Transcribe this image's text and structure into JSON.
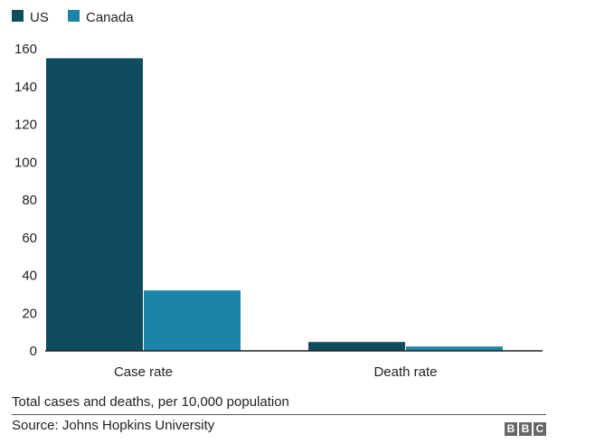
{
  "chart_data": {
    "type": "bar",
    "title": "",
    "subtitle": "Total cases and deaths, per 10,000 population",
    "source": "Source: Johns Hopkins University",
    "categories": [
      "Case rate",
      "Death rate"
    ],
    "series": [
      {
        "name": "US",
        "color": "#0e4c5e",
        "values": [
          155,
          4.7
        ]
      },
      {
        "name": "Canada",
        "color": "#1a85a6",
        "values": [
          32,
          2.3
        ]
      }
    ],
    "ylim": [
      0,
      160
    ],
    "yticks": [
      "0",
      "20",
      "40",
      "60",
      "80",
      "100",
      "120",
      "140",
      "160"
    ],
    "xlabel": "",
    "ylabel": "",
    "grid": false,
    "legend": "top-left"
  },
  "logo": {
    "letters": [
      "B",
      "B",
      "C"
    ]
  }
}
